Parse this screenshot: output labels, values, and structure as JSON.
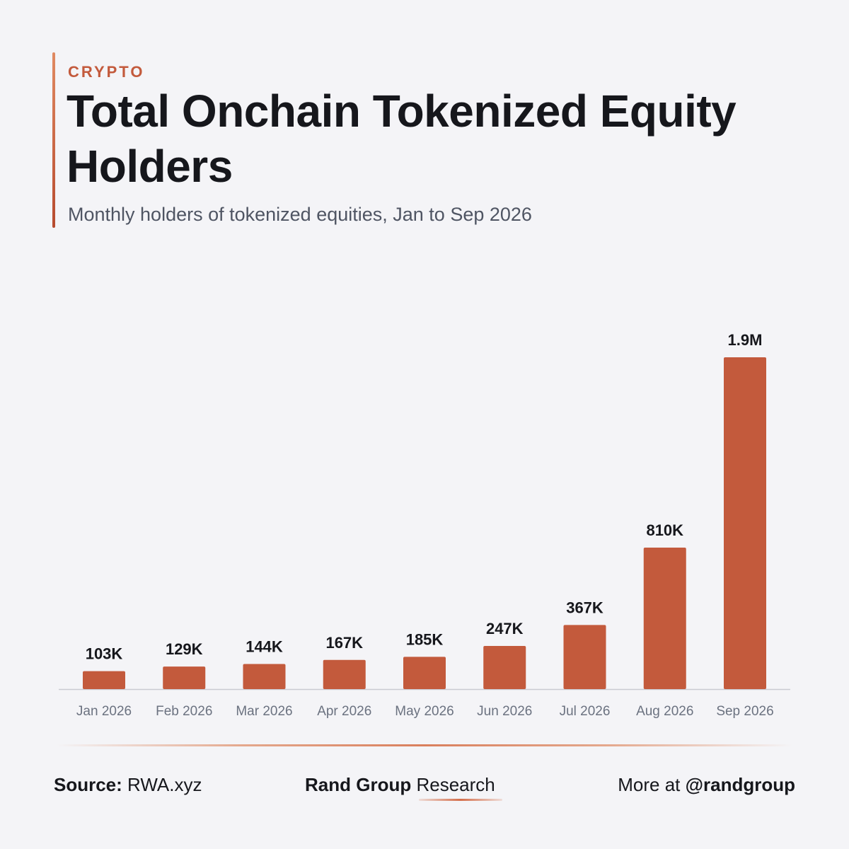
{
  "header": {
    "category": "CRYPTO",
    "title": "Total Onchain Tokenized Equity Holders",
    "subtitle": "Monthly holders of tokenized equities, Jan to Sep 2026"
  },
  "colors": {
    "bar": "#c35a3c",
    "accent": "#c35a3c",
    "text": "#16171c",
    "muted": "#6b7280",
    "background": "#f4f4f7"
  },
  "chart_data": {
    "type": "bar",
    "categories": [
      "Jan 2026",
      "Feb 2026",
      "Mar 2026",
      "Apr 2026",
      "May 2026",
      "Jun 2026",
      "Jul 2026",
      "Aug 2026",
      "Sep 2026"
    ],
    "values": [
      103000,
      129000,
      144000,
      167000,
      185000,
      247000,
      367000,
      810000,
      1900000
    ],
    "data_labels": [
      "103K",
      "129K",
      "144K",
      "167K",
      "185K",
      "247K",
      "367K",
      "810K",
      "1.9M"
    ],
    "title": "Total Onchain Tokenized Equity Holders",
    "subtitle": "Monthly holders of tokenized equities, Jan to Sep 2026",
    "xlabel": "",
    "ylabel": "",
    "ylim": [
      0,
      1900000
    ],
    "grid": false,
    "legend": "none"
  },
  "footer": {
    "source_label": "Source:",
    "source_value": "RWA.xyz",
    "brand_bold": "Rand Group",
    "brand_light": "Research",
    "more_label": "More at",
    "handle": "@randgroup"
  }
}
